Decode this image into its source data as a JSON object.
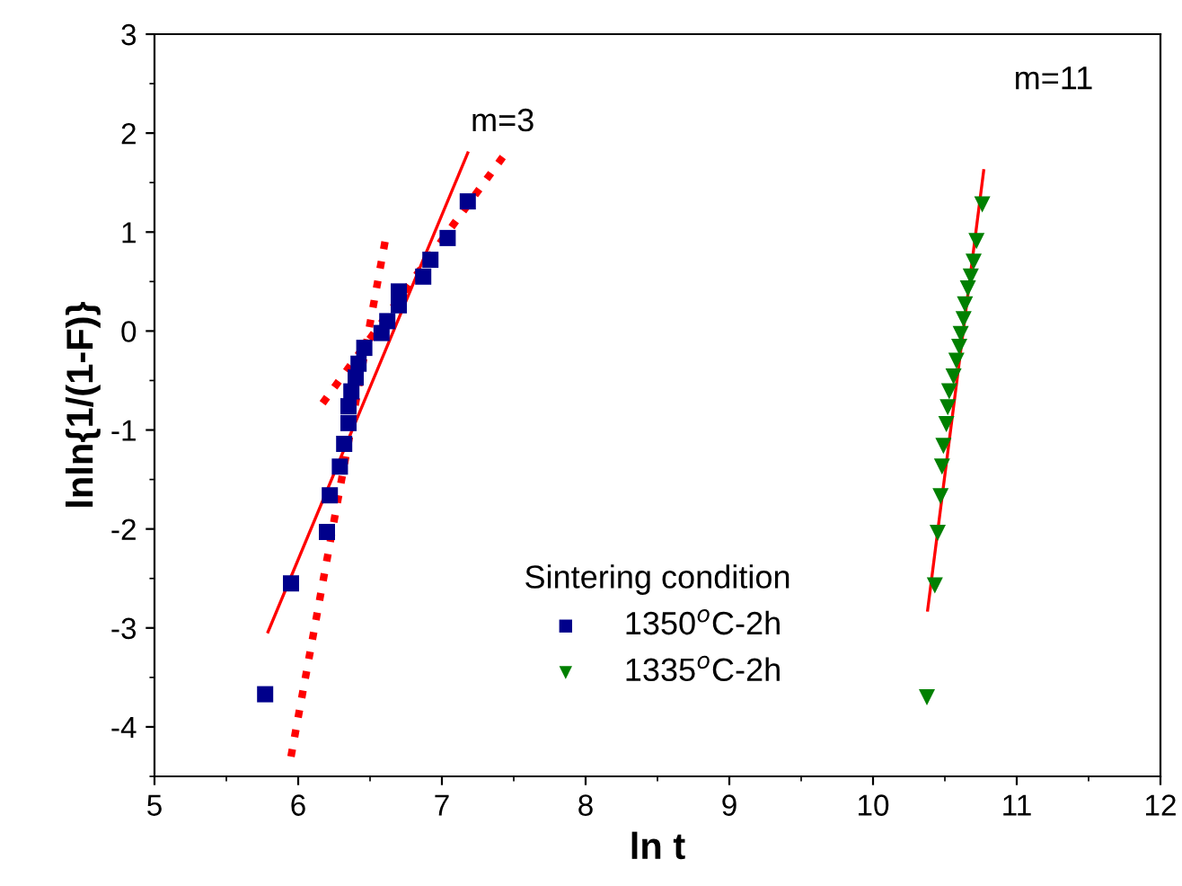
{
  "chart_data": {
    "type": "scatter",
    "xlabel": "ln t",
    "ylabel": "lnln{1/(1-F)}",
    "legend_title": "Sintering condition",
    "legend": "bottom",
    "xlim": [
      5,
      12
    ],
    "ylim": [
      -4.5,
      3
    ],
    "xticks": [
      5,
      6,
      7,
      8,
      9,
      10,
      11,
      12
    ],
    "yticks": [
      -4,
      -3,
      -2,
      -1,
      0,
      1,
      2,
      3
    ],
    "grid": false,
    "annotations": [
      "m=3",
      "m=11"
    ],
    "series": [
      {
        "name": "1350$^{o}$C-2h",
        "marker": "square",
        "color": "#00008b",
        "x": [
          5.77,
          5.95,
          6.2,
          6.22,
          6.29,
          6.32,
          6.35,
          6.35,
          6.37,
          6.4,
          6.42,
          6.46,
          6.58,
          6.62,
          6.7,
          6.7,
          6.87,
          6.92,
          7.04,
          7.18
        ],
        "values": [
          -3.67,
          -2.55,
          -2.03,
          -1.66,
          -1.37,
          -1.14,
          -0.93,
          -0.76,
          -0.61,
          -0.47,
          -0.33,
          -0.17,
          -0.02,
          0.1,
          0.26,
          0.4,
          0.55,
          0.72,
          0.94,
          1.31
        ]
      },
      {
        "name": "1335$^{o}$C-2h",
        "marker": "triangle",
        "color": "#008000",
        "x": [
          10.375,
          10.43,
          10.45,
          10.47,
          10.48,
          10.49,
          10.51,
          10.52,
          10.53,
          10.56,
          10.58,
          10.6,
          10.61,
          10.63,
          10.64,
          10.66,
          10.68,
          10.7,
          10.72,
          10.76
        ],
        "values": [
          -3.7,
          -2.57,
          -2.04,
          -1.67,
          -1.37,
          -1.16,
          -0.94,
          -0.77,
          -0.61,
          -0.46,
          -0.3,
          -0.16,
          -0.03,
          0.12,
          0.27,
          0.43,
          0.55,
          0.7,
          0.91,
          1.28
        ]
      },
      {
        "type": "line",
        "line_style": "solid",
        "color": "#ff0000",
        "x": [
          5.79,
          7.18
        ],
        "values": [
          -3.04,
          1.8
        ]
      },
      {
        "type": "line",
        "line_style": "dotted",
        "color": "#ff0000",
        "x": [
          5.95,
          6.61
        ],
        "values": [
          -4.3,
          0.95
        ]
      },
      {
        "type": "line",
        "line_style": "dotted",
        "color": "#ff0000",
        "x": [
          6.17,
          7.46
        ],
        "values": [
          -0.73,
          1.83
        ]
      },
      {
        "type": "line",
        "line_style": "solid",
        "color": "#ff0000",
        "x": [
          10.38,
          10.77
        ],
        "values": [
          -2.82,
          1.62
        ]
      }
    ]
  }
}
